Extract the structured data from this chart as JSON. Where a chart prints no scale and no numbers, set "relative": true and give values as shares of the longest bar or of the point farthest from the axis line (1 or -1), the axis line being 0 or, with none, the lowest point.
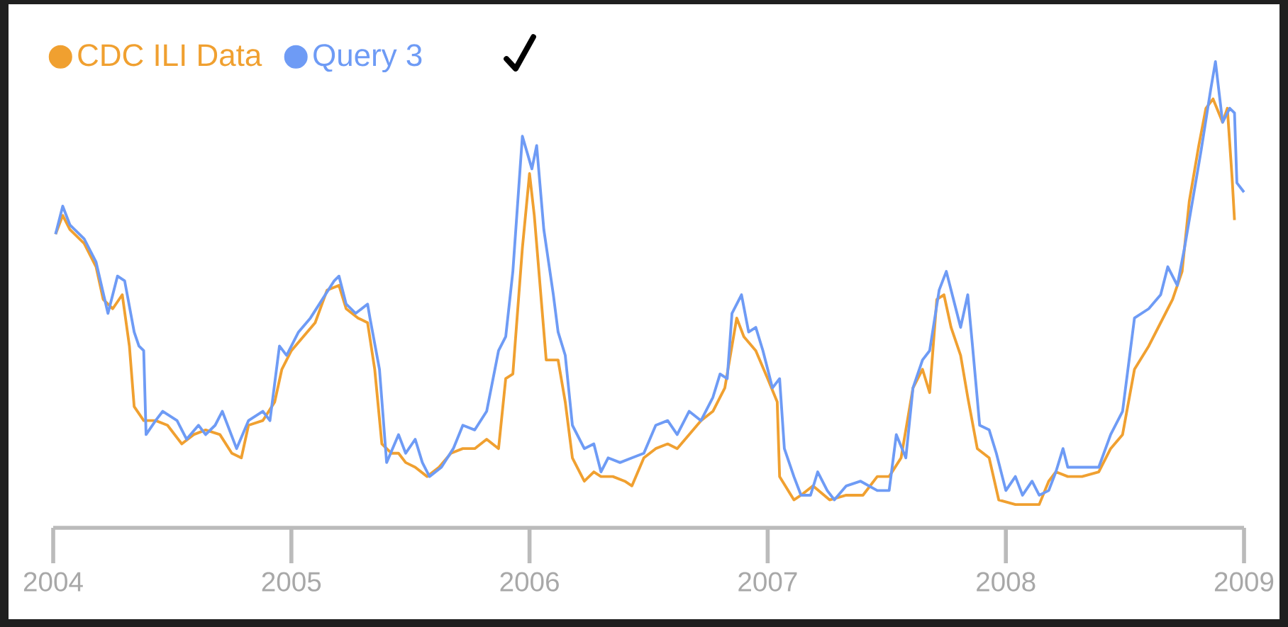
{
  "chart_data": {
    "type": "line",
    "relative": true,
    "xlim": [
      2004,
      2009
    ],
    "xticks": [
      2004,
      2005,
      2006,
      2007,
      2008,
      2009
    ],
    "legend": "top left",
    "series": [
      {
        "name": "CDC ILI Data",
        "color": "#f0a030",
        "x": [
          2004.01,
          2004.04,
          2004.07,
          2004.13,
          2004.18,
          2004.21,
          2004.25,
          2004.29,
          2004.32,
          2004.34,
          2004.38,
          2004.43,
          2004.48,
          2004.54,
          2004.59,
          2004.64,
          2004.7,
          2004.75,
          2004.79,
          2004.82,
          2004.88,
          2004.93,
          2004.96,
          2005.0,
          2005.05,
          2005.1,
          2005.15,
          2005.2,
          2005.23,
          2005.28,
          2005.32,
          2005.35,
          2005.38,
          2005.42,
          2005.45,
          2005.48,
          2005.52,
          2005.57,
          2005.62,
          2005.67,
          2005.72,
          2005.77,
          2005.82,
          2005.87,
          2005.9,
          2005.93,
          2005.97,
          2006.0,
          2006.02,
          2006.07,
          2006.12,
          2006.15,
          2006.18,
          2006.23,
          2006.27,
          2006.3,
          2006.35,
          2006.4,
          2006.43,
          2006.48,
          2006.53,
          2006.58,
          2006.62,
          2006.67,
          2006.72,
          2006.77,
          2006.82,
          2006.87,
          2006.9,
          2006.95,
          2007.0,
          2007.04,
          2007.05,
          2007.11,
          2007.14,
          2007.19,
          2007.26,
          2007.33,
          2007.4,
          2007.46,
          2007.51,
          2007.56,
          2007.61,
          2007.65,
          2007.68,
          2007.71,
          2007.74,
          2007.77,
          2007.81,
          2007.84,
          2007.88,
          2007.93,
          2007.97,
          2008.04,
          2008.11,
          2008.14,
          2008.18,
          2008.21,
          2008.26,
          2008.32,
          2008.39,
          2008.44,
          2008.49,
          2008.54,
          2008.6,
          2008.65,
          2008.7,
          2008.74,
          2008.77,
          2008.81,
          2008.84,
          2008.87,
          2008.91,
          2008.93,
          2008.95,
          2008.96
        ],
        "values": [
          0.63,
          0.67,
          0.64,
          0.61,
          0.56,
          0.49,
          0.47,
          0.5,
          0.39,
          0.26,
          0.23,
          0.23,
          0.22,
          0.18,
          0.2,
          0.21,
          0.2,
          0.16,
          0.15,
          0.22,
          0.23,
          0.27,
          0.34,
          0.38,
          0.41,
          0.44,
          0.51,
          0.52,
          0.47,
          0.45,
          0.44,
          0.34,
          0.18,
          0.16,
          0.16,
          0.14,
          0.13,
          0.11,
          0.13,
          0.16,
          0.17,
          0.17,
          0.19,
          0.17,
          0.32,
          0.33,
          0.6,
          0.76,
          0.67,
          0.36,
          0.36,
          0.27,
          0.15,
          0.1,
          0.12,
          0.11,
          0.11,
          0.1,
          0.09,
          0.15,
          0.17,
          0.18,
          0.17,
          0.2,
          0.23,
          0.25,
          0.3,
          0.45,
          0.41,
          0.38,
          0.32,
          0.27,
          0.11,
          0.06,
          0.07,
          0.09,
          0.06,
          0.07,
          0.07,
          0.11,
          0.11,
          0.15,
          0.3,
          0.34,
          0.29,
          0.49,
          0.5,
          0.43,
          0.37,
          0.28,
          0.17,
          0.15,
          0.06,
          0.05,
          0.05,
          0.05,
          0.1,
          0.12,
          0.11,
          0.11,
          0.12,
          0.17,
          0.2,
          0.34,
          0.39,
          0.44,
          0.49,
          0.55,
          0.7,
          0.82,
          0.9,
          0.92,
          0.87,
          0.9,
          0.75,
          0.66
        ]
      },
      {
        "name": "Query 3",
        "color": "#6e9bf5",
        "x": [
          2004.01,
          2004.04,
          2004.07,
          2004.13,
          2004.18,
          2004.23,
          2004.27,
          2004.3,
          2004.34,
          2004.36,
          2004.38,
          2004.39,
          2004.43,
          2004.46,
          2004.52,
          2004.56,
          2004.61,
          2004.64,
          2004.68,
          2004.71,
          2004.77,
          2004.82,
          2004.88,
          2004.91,
          2004.95,
          2004.98,
          2005.03,
          2005.08,
          2005.13,
          2005.18,
          2005.2,
          2005.23,
          2005.27,
          2005.32,
          2005.33,
          2005.37,
          2005.4,
          2005.45,
          2005.48,
          2005.52,
          2005.55,
          2005.58,
          2005.63,
          2005.68,
          2005.72,
          2005.77,
          2005.82,
          2005.87,
          2005.9,
          2005.93,
          2005.97,
          2006.01,
          2006.03,
          2006.06,
          2006.1,
          2006.12,
          2006.15,
          2006.18,
          2006.23,
          2006.27,
          2006.3,
          2006.33,
          2006.38,
          2006.43,
          2006.48,
          2006.53,
          2006.58,
          2006.62,
          2006.67,
          2006.72,
          2006.77,
          2006.8,
          2006.83,
          2006.85,
          2006.89,
          2006.92,
          2006.95,
          2006.98,
          2007.02,
          2007.05,
          2007.07,
          2007.11,
          2007.14,
          2007.18,
          2007.21,
          2007.25,
          2007.28,
          2007.33,
          2007.39,
          2007.46,
          2007.51,
          2007.54,
          2007.58,
          2007.61,
          2007.65,
          2007.68,
          2007.72,
          2007.75,
          2007.77,
          2007.81,
          2007.84,
          2007.86,
          2007.89,
          2007.93,
          2007.96,
          2008.0,
          2008.04,
          2008.07,
          2008.11,
          2008.14,
          2008.18,
          2008.21,
          2008.24,
          2008.26,
          2008.32,
          2008.39,
          2008.44,
          2008.49,
          2008.54,
          2008.6,
          2008.65,
          2008.68,
          2008.72,
          2008.75,
          2008.79,
          2008.82,
          2008.86,
          2008.88,
          2008.91,
          2008.94,
          2008.96,
          2008.97,
          2009.0
        ],
        "values": [
          0.63,
          0.69,
          0.65,
          0.62,
          0.57,
          0.46,
          0.54,
          0.53,
          0.42,
          0.39,
          0.38,
          0.2,
          0.23,
          0.25,
          0.23,
          0.19,
          0.22,
          0.2,
          0.22,
          0.25,
          0.17,
          0.23,
          0.25,
          0.23,
          0.39,
          0.37,
          0.42,
          0.45,
          0.49,
          0.53,
          0.54,
          0.48,
          0.46,
          0.48,
          0.45,
          0.34,
          0.14,
          0.2,
          0.16,
          0.19,
          0.14,
          0.11,
          0.13,
          0.17,
          0.22,
          0.21,
          0.25,
          0.38,
          0.41,
          0.55,
          0.84,
          0.77,
          0.82,
          0.64,
          0.5,
          0.42,
          0.37,
          0.22,
          0.17,
          0.18,
          0.12,
          0.15,
          0.14,
          0.15,
          0.16,
          0.22,
          0.23,
          0.2,
          0.25,
          0.23,
          0.28,
          0.33,
          0.32,
          0.46,
          0.5,
          0.42,
          0.43,
          0.38,
          0.3,
          0.32,
          0.17,
          0.11,
          0.07,
          0.07,
          0.12,
          0.08,
          0.06,
          0.09,
          0.1,
          0.08,
          0.08,
          0.2,
          0.15,
          0.3,
          0.36,
          0.38,
          0.51,
          0.55,
          0.51,
          0.43,
          0.5,
          0.39,
          0.22,
          0.21,
          0.16,
          0.08,
          0.11,
          0.07,
          0.1,
          0.07,
          0.08,
          0.12,
          0.17,
          0.13,
          0.13,
          0.13,
          0.2,
          0.25,
          0.45,
          0.47,
          0.5,
          0.56,
          0.52,
          0.6,
          0.72,
          0.81,
          0.94,
          1,
          0.87,
          0.9,
          0.89,
          0.74,
          0.72
        ]
      }
    ]
  }
}
